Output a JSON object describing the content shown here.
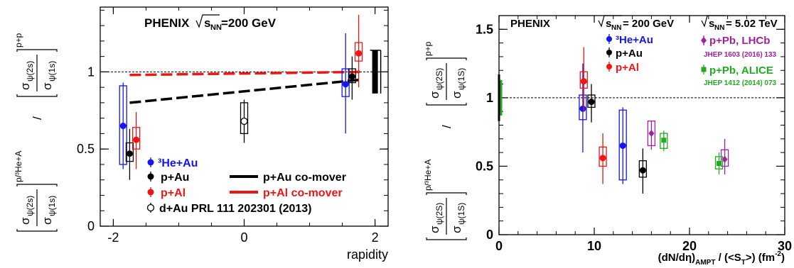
{
  "chart_data": [
    {
      "type": "scatter",
      "experiment": "PHENIX",
      "energy_label": "=200 GeV",
      "energy_symbol": "s",
      "energy_sub": "NN",
      "xlabel": "rapidity",
      "ylabel": {
        "num_top": "σ",
        "num_top_sub": "ψ(2s)",
        "den_top": "σ",
        "den_top_sub": "ψ(1s)",
        "top_sup": "p+p",
        "num_bot": "σ",
        "num_bot_sub": "ψ(2s)",
        "den_bot": "σ",
        "den_bot_sub": "ψ(1s)",
        "bot_sup": "p/³He+A",
        "slash": "/"
      },
      "xlim": [
        -2.2,
        2.2
      ],
      "ylim": [
        0,
        1.42
      ],
      "x_ticks": [
        -2,
        0,
        2
      ],
      "x_tick_labels": [
        "-2",
        "0",
        "2"
      ],
      "y_ticks": [
        0,
        0.5,
        1
      ],
      "y_tick_labels": [
        "0",
        "0.5",
        "1"
      ],
      "reference_line": 1.0,
      "pp_syst_band": {
        "x": 2.0,
        "low": 0.86,
        "high": 1.14
      },
      "series": [
        {
          "name": "³He+Au",
          "color": "#1515ee",
          "marker": "filled",
          "points": [
            {
              "x": -1.85,
              "y": 0.65,
              "stat": [
                0.37,
                0.93
              ],
              "sys": [
                0.4,
                0.91
              ]
            },
            {
              "x": 1.55,
              "y": 0.92,
              "stat": [
                0.6,
                1.25
              ],
              "sys": [
                0.84,
                1.02
              ]
            }
          ]
        },
        {
          "name": "p+Au",
          "color": "#000000",
          "marker": "filled",
          "points": [
            {
              "x": -1.75,
              "y": 0.47,
              "stat": [
                0.3,
                0.63
              ],
              "sys": [
                0.42,
                0.54
              ]
            },
            {
              "x": 1.65,
              "y": 0.97,
              "stat": [
                0.82,
                1.1
              ],
              "sys": [
                0.93,
                1.02
              ]
            }
          ]
        },
        {
          "name": "p+Al",
          "color": "#ee1515",
          "marker": "filled",
          "points": [
            {
              "x": -1.65,
              "y": 0.56,
              "stat": [
                0.37,
                0.74
              ],
              "sys": [
                0.5,
                0.64
              ]
            },
            {
              "x": 1.75,
              "y": 1.12,
              "stat": [
                0.9,
                1.37
              ],
              "sys": [
                1.07,
                1.19
              ]
            }
          ]
        },
        {
          "name": "d+Au PRL 111 202301 (2013)",
          "color": "#000000",
          "marker": "open",
          "points": [
            {
              "x": 0.0,
              "y": 0.68,
              "stat": [
                0.54,
                0.82
              ],
              "sys": [
                0.6,
                0.8
              ]
            }
          ]
        }
      ],
      "comover_lines": [
        {
          "name": "p+Au co-mover",
          "color": "#000000",
          "points": [
            [
              -1.75,
              0.8
            ],
            [
              1.8,
              0.95
            ]
          ]
        },
        {
          "name": "p+Al co-mover",
          "color": "#ee1515",
          "points": [
            [
              -1.75,
              0.98
            ],
            [
              1.8,
              1.0
            ]
          ]
        }
      ]
    },
    {
      "type": "scatter",
      "experiment": "PHENIX",
      "energy_label_1": "= 200 GeV",
      "energy_label_2": "= 5.02 TeV",
      "energy_symbol": "s",
      "energy_sub": "NN",
      "xlabel": "(dN/dη)",
      "xlabel_sub": "AMPT",
      "xlabel_mid": " / (<S",
      "xlabel_sub2": "T",
      "xlabel_end": ">)  (fm",
      "xlabel_sup": "-2",
      "xlabel_close": ")",
      "ylabel": {
        "num_top": "σ",
        "num_top_sub": "ψ(2S)",
        "den_top": "σ",
        "den_top_sub": "ψ(1S)",
        "top_sup": "p+p",
        "num_bot": "σ",
        "num_bot_sub": "ψ(2S)",
        "den_bot": "σ",
        "den_bot_sub": "ψ(1S)",
        "bot_sup": "p/³He+A",
        "slash": "/"
      },
      "xlim": [
        0,
        30
      ],
      "ylim": [
        0,
        1.6
      ],
      "x_ticks": [
        0,
        10,
        20,
        30
      ],
      "x_tick_labels": [
        "0",
        "10",
        "20",
        "30"
      ],
      "y_ticks": [
        0,
        0.5,
        1,
        1.5
      ],
      "y_tick_labels": [
        "0",
        "0.5",
        "1",
        "1.5"
      ],
      "reference_line": 1.0,
      "pp_syst_band": {
        "x": 0.15,
        "low": 0.87,
        "high": 1.13
      },
      "lhcb_ref": "JHEP 1603 (2016) 133",
      "alice_ref": "JHEP 1412 (2014) 073",
      "series": [
        {
          "name": "³He+Au",
          "color": "#1515ee",
          "points": [
            {
              "x": 8.8,
              "y": 0.92,
              "stat": [
                0.6,
                1.25
              ],
              "sys": [
                0.84,
                1.02
              ]
            },
            {
              "x": 13.0,
              "y": 0.65,
              "stat": [
                0.37,
                0.93
              ],
              "sys": [
                0.4,
                0.91
              ]
            }
          ]
        },
        {
          "name": "p+Au",
          "color": "#000000",
          "points": [
            {
              "x": 9.7,
              "y": 0.97,
              "stat": [
                0.82,
                1.1
              ],
              "sys": [
                0.93,
                1.02
              ]
            },
            {
              "x": 15.1,
              "y": 0.47,
              "stat": [
                0.3,
                0.63
              ],
              "sys": [
                0.42,
                0.54
              ]
            }
          ]
        },
        {
          "name": "p+Al",
          "color": "#ee1515",
          "points": [
            {
              "x": 8.9,
              "y": 1.12,
              "stat": [
                0.9,
                1.37
              ],
              "sys": [
                1.07,
                1.19
              ]
            },
            {
              "x": 10.9,
              "y": 0.56,
              "stat": [
                0.37,
                0.74
              ],
              "sys": [
                0.5,
                0.64
              ]
            }
          ]
        },
        {
          "name": "p+Pb, LHCb",
          "color": "#a020a0",
          "marker": "diamond",
          "points": [
            {
              "x": 16.0,
              "y": 0.74,
              "stat": [
                0.62,
                0.83
              ],
              "sys": [
                0.65,
                0.83
              ]
            },
            {
              "x": 23.7,
              "y": 0.55,
              "stat": [
                0.44,
                0.7
              ],
              "sys": [
                0.5,
                0.62
              ]
            }
          ]
        },
        {
          "name": "p+Pb, ALICE",
          "color": "#22aa22",
          "marker": "square",
          "points": [
            {
              "x": 17.3,
              "y": 0.69,
              "stat": [
                0.61,
                0.76
              ],
              "sys": [
                0.63,
                0.74
              ]
            },
            {
              "x": 23.1,
              "y": 0.52,
              "stat": [
                0.44,
                0.6
              ],
              "sys": [
                0.48,
                0.57
              ]
            }
          ]
        }
      ]
    }
  ]
}
